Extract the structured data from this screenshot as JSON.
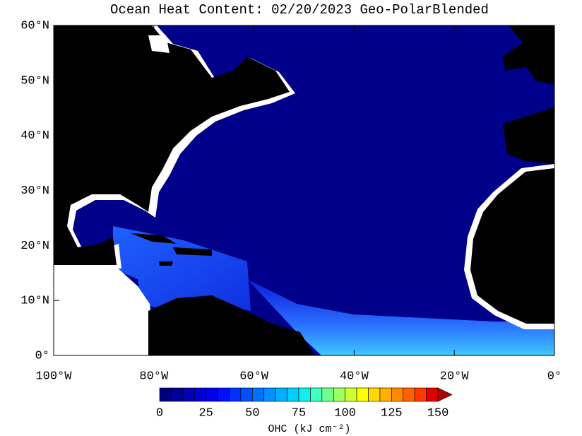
{
  "map": {
    "title": "Ocean Heat Content: 02/20/2023 Geo-PolarBlended",
    "xlim": [
      -100,
      0
    ],
    "ylim": [
      0,
      60
    ],
    "xticks": [
      {
        "value": -100,
        "label": "100°W"
      },
      {
        "value": -80,
        "label": "80°W"
      },
      {
        "value": -60,
        "label": "60°W"
      },
      {
        "value": -40,
        "label": "40°W"
      },
      {
        "value": -20,
        "label": "20°W"
      },
      {
        "value": 0,
        "label": "0°"
      }
    ],
    "yticks": [
      {
        "value": 0,
        "label": "0°"
      },
      {
        "value": 10,
        "label": "10°N"
      },
      {
        "value": 20,
        "label": "20°N"
      },
      {
        "value": 30,
        "label": "30°N"
      },
      {
        "value": 40,
        "label": "40°N"
      },
      {
        "value": 50,
        "label": "50°N"
      },
      {
        "value": 60,
        "label": "60°N"
      }
    ],
    "colorbar": {
      "label": "OHC (kJ cm⁻²)",
      "range": [
        0,
        150
      ],
      "ticks": [
        0,
        25,
        50,
        75,
        100,
        125,
        150
      ],
      "colors": [
        "#00007f",
        "#00009a",
        "#0000b5",
        "#0000d0",
        "#0000eb",
        "#0010ff",
        "#0030ff",
        "#0050ff",
        "#0070ff",
        "#0090ff",
        "#00b0ff",
        "#00d0ff",
        "#10f0f0",
        "#40ffc0",
        "#70ff90",
        "#a0ff60",
        "#d0ff30",
        "#ffff00",
        "#ffd800",
        "#ffb000",
        "#ff8800",
        "#ff6000",
        "#ff3800",
        "#e00000",
        "#b00000"
      ]
    }
  }
}
